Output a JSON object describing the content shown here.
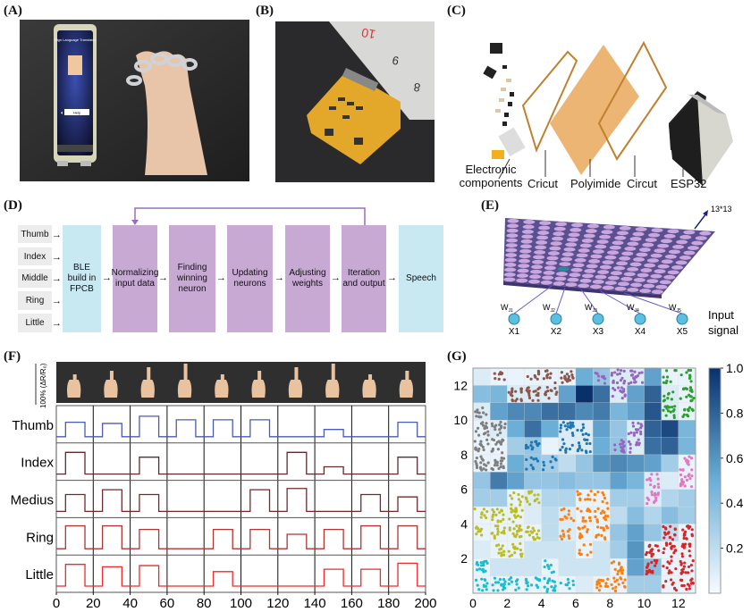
{
  "panels": {
    "a": "(A)",
    "b": "(B)",
    "c": "(C)",
    "d": "(D)",
    "e": "(E)",
    "f": "(F)",
    "g": "(G)"
  },
  "phone": {
    "title": "Sign Language Translator",
    "button": "Help"
  },
  "ruler": {
    "marks": [
      "10",
      "9",
      "8"
    ]
  },
  "exploded": {
    "electronic_1": "Electronic",
    "electronic_2": "components",
    "cricut": "Cricut",
    "polyimide": "Polyimide",
    "circut": "Circut",
    "esp32": "ESP32"
  },
  "flow": {
    "inputs": [
      "Thumb",
      "Index",
      "Middle",
      "Ring",
      "Little"
    ],
    "ble": [
      "BLE",
      "build in",
      "FPCB"
    ],
    "steps": [
      [
        "Normalizing",
        "input data"
      ],
      [
        "Finding",
        "winning",
        "neuron"
      ],
      [
        "Updating",
        "neurons"
      ],
      [
        "Adjusting",
        "weights"
      ],
      [
        "Iteration",
        "and output"
      ]
    ],
    "output": "Speech",
    "colors": {
      "io": "#c8e8f2",
      "step": "#c7a9d4",
      "feedback": "#9b6cc0"
    }
  },
  "som": {
    "grid_label": "13*13",
    "nodes": [
      {
        "w": "W",
        "sub": "J1",
        "x": "X1"
      },
      {
        "w": "W",
        "sub": "J2",
        "x": "X2"
      },
      {
        "w": "W",
        "sub": "J3",
        "x": "X3"
      },
      {
        "w": "W",
        "sub": "J4",
        "x": "X4"
      },
      {
        "w": "W",
        "sub": "J5",
        "x": "X5"
      }
    ],
    "input_label_1": "Input",
    "input_label_2": "signal"
  },
  "chart_data": [
    {
      "type": "line",
      "panel": "F",
      "scale_label": "100% (ΔR/R₀)",
      "xlim": [
        0,
        200
      ],
      "xticks": [
        "0",
        "20",
        "40",
        "60",
        "80",
        "100",
        "120",
        "140",
        "160",
        "180",
        "200"
      ],
      "gesture_interval": 20,
      "series": [
        {
          "name": "Thumb",
          "color": "#4a5bb5",
          "levels": [
            0.6,
            0.55,
            0.85,
            0.7,
            0.7,
            0.7,
            0,
            0.3,
            0,
            0.6
          ]
        },
        {
          "name": "Index",
          "color": "#5e2a2e",
          "levels": [
            0.9,
            0,
            0.7,
            0,
            0,
            0,
            0.9,
            0.3,
            0,
            0.7
          ]
        },
        {
          "name": "Medius",
          "color": "#742a2a",
          "levels": [
            0.7,
            0.9,
            0.7,
            0,
            0,
            0.9,
            0.95,
            0,
            0.7,
            0.6
          ]
        },
        {
          "name": "Ring",
          "color": "#b03535",
          "levels": [
            0.95,
            0.95,
            0.8,
            0,
            0.8,
            0.8,
            0.6,
            0.8,
            0.95,
            0.95
          ]
        },
        {
          "name": "Little",
          "color": "#ee2a2a",
          "levels": [
            0.9,
            0.8,
            0.85,
            0,
            0.6,
            0,
            0,
            0.7,
            0.7,
            0.95
          ]
        }
      ]
    },
    {
      "type": "heatmap",
      "panel": "G",
      "xlim": [
        0,
        13
      ],
      "ylim": [
        0,
        13
      ],
      "xticks": [
        "0",
        "2",
        "4",
        "6",
        "8",
        "10",
        "12"
      ],
      "yticks": [
        "2",
        "4",
        "6",
        "8",
        "10",
        "12"
      ],
      "colorbar": {
        "range": [
          0,
          1
        ],
        "ticks": [
          "0.2",
          "0.4",
          "0.6",
          "0.8",
          "1.0"
        ],
        "low": "#f7fbff",
        "high": "#08306b"
      },
      "rows_top_to_bottom": [
        [
          0.1,
          0.05,
          0.05,
          0.05,
          0.05,
          0.05,
          0.5,
          0.35,
          0.1,
          0.1,
          0.55,
          0.05,
          0.05
        ],
        [
          0.4,
          0.45,
          0.1,
          0.1,
          0.1,
          0.55,
          1.0,
          0.75,
          0.1,
          0.55,
          0.8,
          0.1,
          0.05
        ],
        [
          0.1,
          0.55,
          0.65,
          0.65,
          0.75,
          0.75,
          0.65,
          0.7,
          0.45,
          0.55,
          0.85,
          0.1,
          0.05
        ],
        [
          0.05,
          0.1,
          0.5,
          0.75,
          0.5,
          0.1,
          0.1,
          0.55,
          0.35,
          0.1,
          0.8,
          0.9,
          0.45
        ],
        [
          0.05,
          0.05,
          0.3,
          0.35,
          0.05,
          0.1,
          0.1,
          0.5,
          0.35,
          0.1,
          0.75,
          0.8,
          0.45
        ],
        [
          0.05,
          0.05,
          0.5,
          0.35,
          0.3,
          0.2,
          0.35,
          0.6,
          0.65,
          0.6,
          0.55,
          0.3,
          0.05
        ],
        [
          0.35,
          0.7,
          0.55,
          0.35,
          0.35,
          0.4,
          0.35,
          0.35,
          0.55,
          0.45,
          0.1,
          0.1,
          0.05
        ],
        [
          0.3,
          0.3,
          0.05,
          0.1,
          0.25,
          0.25,
          0.05,
          0.05,
          0.3,
          0.3,
          0.1,
          0.25,
          0.3
        ],
        [
          0.05,
          0.05,
          0.05,
          0.1,
          0.2,
          0.1,
          0.05,
          0.05,
          0.2,
          0.4,
          0.25,
          0.4,
          0.3
        ],
        [
          0.05,
          0.05,
          0.05,
          0.05,
          0.2,
          0.1,
          0.05,
          0.05,
          0.35,
          0.55,
          0.35,
          0.2,
          0.05
        ],
        [
          0.1,
          0.05,
          0.05,
          0.15,
          0.15,
          0.15,
          0.05,
          0.15,
          0.3,
          0.6,
          0.05,
          0.05,
          0.05
        ],
        [
          0.05,
          0.15,
          0.15,
          0.15,
          0.05,
          0.15,
          0.15,
          0.15,
          0.05,
          0.55,
          0.4,
          0.05,
          0.05
        ],
        [
          0.05,
          0.05,
          0.05,
          0.05,
          0.05,
          0.05,
          0.1,
          0.05,
          0.05,
          0.3,
          0.3,
          0.05,
          0.05
        ]
      ],
      "clusters": [
        {
          "color": "#8c564b",
          "cells": [
            [
              1,
              12
            ],
            [
              3,
              12
            ],
            [
              4,
              12
            ],
            [
              5,
              12
            ],
            [
              2,
              11
            ],
            [
              3,
              11
            ],
            [
              4,
              11
            ]
          ]
        },
        {
          "color": "#9467bd",
          "cells": [
            [
              7,
              12
            ],
            [
              8,
              12
            ],
            [
              9,
              12
            ],
            [
              8,
              11
            ],
            [
              9,
              9
            ],
            [
              9,
              8
            ],
            [
              8,
              8
            ]
          ]
        },
        {
          "color": "#2ca02c",
          "cells": [
            [
              11,
              12
            ],
            [
              12,
              12
            ],
            [
              11,
              11
            ],
            [
              12,
              11
            ],
            [
              11,
              10
            ],
            [
              12,
              10
            ]
          ]
        },
        {
          "color": "#7f7f7f",
          "cells": [
            [
              0,
              10
            ],
            [
              0,
              9
            ],
            [
              1,
              9
            ],
            [
              0,
              8
            ],
            [
              1,
              8
            ],
            [
              0,
              7
            ],
            [
              1,
              7
            ]
          ]
        },
        {
          "color": "#1f77b4",
          "cells": [
            [
              5,
              9
            ],
            [
              6,
              9
            ],
            [
              5,
              8
            ],
            [
              6,
              8
            ],
            [
              3,
              8
            ],
            [
              3,
              7
            ],
            [
              4,
              7
            ]
          ]
        },
        {
          "color": "#e377c2",
          "cells": [
            [
              12,
              7
            ],
            [
              10,
              6
            ],
            [
              12,
              6
            ],
            [
              10,
              5
            ]
          ]
        },
        {
          "color": "#bcbd22",
          "cells": [
            [
              2,
              5
            ],
            [
              3,
              5
            ],
            [
              0,
              4
            ],
            [
              1,
              4
            ],
            [
              2,
              4
            ],
            [
              0,
              3
            ],
            [
              1,
              3
            ],
            [
              2,
              3
            ],
            [
              3,
              3
            ],
            [
              1,
              2
            ],
            [
              2,
              2
            ]
          ]
        },
        {
          "color": "#ff7f0e",
          "cells": [
            [
              6,
              5
            ],
            [
              7,
              5
            ],
            [
              5,
              4
            ],
            [
              6,
              4
            ],
            [
              7,
              4
            ],
            [
              5,
              3
            ],
            [
              6,
              3
            ],
            [
              7,
              3
            ],
            [
              6,
              2
            ],
            [
              8,
              1
            ],
            [
              8,
              0
            ],
            [
              7,
              0
            ]
          ]
        },
        {
          "color": "#17becf",
          "cells": [
            [
              0,
              1
            ],
            [
              0,
              0
            ],
            [
              1,
              0
            ],
            [
              2,
              0
            ],
            [
              3,
              0
            ],
            [
              4,
              1
            ],
            [
              4,
              0
            ],
            [
              5,
              0
            ]
          ]
        },
        {
          "color": "#d62728",
          "cells": [
            [
              10,
              2
            ],
            [
              11,
              2
            ],
            [
              12,
              2
            ],
            [
              11,
              3
            ],
            [
              12,
              3
            ],
            [
              10,
              1
            ],
            [
              11,
              1
            ],
            [
              12,
              1
            ],
            [
              11,
              0
            ],
            [
              12,
              0
            ]
          ]
        }
      ]
    }
  ]
}
